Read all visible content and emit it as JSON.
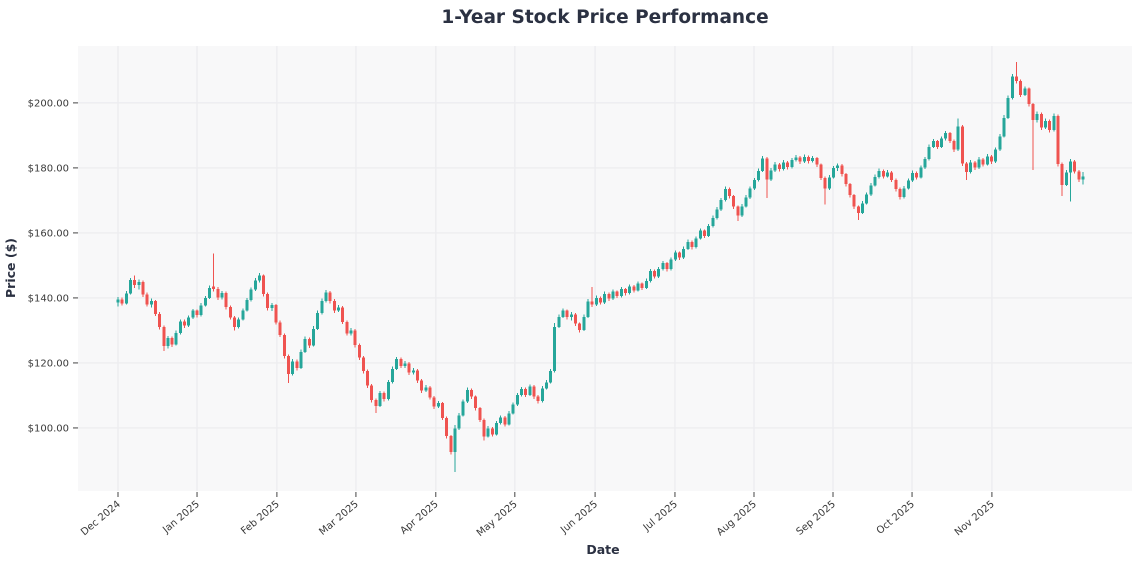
{
  "chart_data": {
    "type": "candlestick",
    "title": "1-Year Stock Price Performance",
    "xlabel": "Date",
    "ylabel": "Price ($)",
    "grid": true,
    "legend": "none",
    "ylim": [
      80.6,
      217.5
    ],
    "colors": {
      "up": "#26a69a",
      "down": "#ef5350",
      "plot_bg": "#f8f8f9",
      "grid": "#ededf0",
      "tick": "#444444",
      "tick_text": "#3a3a3a",
      "title_text": "#2b3142",
      "figure_bg": "#ffffff"
    },
    "y_ticks": [
      {
        "value": 100,
        "label": "$100.00"
      },
      {
        "value": 120,
        "label": "$120.00"
      },
      {
        "value": 140,
        "label": "$140.00"
      },
      {
        "value": 160,
        "label": "$160.00"
      },
      {
        "value": 180,
        "label": "$180.00"
      },
      {
        "value": 200,
        "label": "$200.00"
      }
    ],
    "x_ticks": [
      {
        "index": 0,
        "label": "Dec 2024"
      },
      {
        "index": 19,
        "label": "Jan 2025"
      },
      {
        "index": 38.2,
        "label": "Feb 2025"
      },
      {
        "index": 57.2,
        "label": "Mar 2025"
      },
      {
        "index": 76.4,
        "label": "Apr 2025"
      },
      {
        "index": 95.4,
        "label": "May 2025"
      },
      {
        "index": 114.7,
        "label": "Jun 2025"
      },
      {
        "index": 133.9,
        "label": "Jul 2025"
      },
      {
        "index": 152.9,
        "label": "Aug 2025"
      },
      {
        "index": 171.9,
        "label": "Sep 2025"
      },
      {
        "index": 190.9,
        "label": "Oct 2025"
      },
      {
        "index": 210.1,
        "label": "Nov 2025"
      }
    ],
    "ohlc": [
      [
        138.6,
        140.3,
        137.4,
        139.5
      ],
      [
        139.5,
        140.2,
        137.7,
        138.3
      ],
      [
        138.3,
        142.1,
        137.9,
        141.4
      ],
      [
        141.4,
        146.2,
        141.0,
        145.5
      ],
      [
        145.5,
        146.9,
        143.1,
        143.9
      ],
      [
        143.9,
        145.6,
        142.6,
        144.9
      ],
      [
        144.9,
        145.3,
        140.3,
        141.0
      ],
      [
        141.0,
        141.6,
        137.3,
        138.0
      ],
      [
        138.0,
        139.8,
        137.1,
        139.1
      ],
      [
        139.1,
        139.4,
        134.4,
        135.1
      ],
      [
        135.1,
        135.7,
        130.3,
        131.0
      ],
      [
        131.0,
        131.5,
        123.6,
        125.2
      ],
      [
        125.2,
        128.3,
        124.4,
        127.6
      ],
      [
        127.6,
        128.1,
        124.9,
        125.7
      ],
      [
        125.7,
        129.9,
        125.3,
        129.2
      ],
      [
        129.2,
        133.4,
        128.8,
        132.8
      ],
      [
        132.8,
        133.3,
        130.7,
        131.5
      ],
      [
        131.5,
        134.6,
        131.1,
        134.0
      ],
      [
        134.0,
        136.6,
        133.5,
        136.1
      ],
      [
        136.1,
        136.5,
        133.9,
        134.7
      ],
      [
        134.7,
        138.4,
        134.3,
        137.7
      ],
      [
        137.7,
        140.6,
        137.3,
        140.0
      ],
      [
        140.0,
        143.8,
        139.6,
        143.1
      ],
      [
        143.5,
        153.6,
        141.9,
        142.7
      ],
      [
        142.7,
        143.3,
        139.4,
        140.1
      ],
      [
        140.1,
        142.2,
        139.5,
        141.5
      ],
      [
        141.5,
        141.9,
        136.5,
        137.2
      ],
      [
        137.2,
        137.7,
        133.3,
        134.0
      ],
      [
        134.0,
        134.4,
        129.9,
        131.1
      ],
      [
        131.1,
        134.0,
        130.6,
        133.4
      ],
      [
        133.4,
        136.8,
        133.0,
        136.2
      ],
      [
        136.2,
        139.9,
        135.8,
        139.3
      ],
      [
        139.3,
        143.2,
        138.9,
        142.6
      ],
      [
        142.6,
        146.1,
        142.2,
        145.4
      ],
      [
        145.4,
        147.6,
        144.8,
        146.9
      ],
      [
        146.9,
        147.2,
        140.5,
        141.2
      ],
      [
        141.2,
        141.7,
        136.2,
        136.9
      ],
      [
        136.9,
        138.5,
        135.9,
        137.8
      ],
      [
        137.8,
        138.2,
        131.8,
        132.5
      ],
      [
        132.5,
        133.0,
        127.9,
        128.6
      ],
      [
        128.6,
        129.1,
        121.4,
        122.2
      ],
      [
        122.2,
        122.6,
        113.8,
        116.6
      ],
      [
        116.6,
        121.2,
        116.2,
        120.5
      ],
      [
        120.5,
        121.0,
        117.7,
        118.5
      ],
      [
        118.5,
        124.2,
        118.1,
        123.4
      ],
      [
        123.4,
        128.1,
        123.0,
        127.3
      ],
      [
        127.3,
        127.8,
        124.6,
        125.4
      ],
      [
        125.4,
        131.3,
        125.0,
        130.5
      ],
      [
        130.5,
        136.1,
        130.1,
        135.3
      ],
      [
        135.3,
        139.8,
        134.9,
        139.0
      ],
      [
        139.0,
        142.4,
        138.6,
        141.7
      ],
      [
        141.7,
        142.1,
        138.3,
        139.0
      ],
      [
        139.0,
        139.6,
        135.4,
        136.1
      ],
      [
        136.1,
        137.8,
        135.6,
        137.1
      ],
      [
        137.1,
        137.5,
        131.9,
        132.6
      ],
      [
        132.6,
        133.1,
        128.4,
        129.1
      ],
      [
        129.1,
        130.7,
        128.5,
        130.0
      ],
      [
        130.0,
        130.4,
        124.8,
        125.5
      ],
      [
        125.5,
        126.0,
        120.9,
        121.6
      ],
      [
        121.6,
        122.1,
        116.8,
        117.5
      ],
      [
        117.5,
        118.0,
        112.3,
        113.0
      ],
      [
        113.0,
        113.5,
        107.9,
        108.6
      ],
      [
        108.6,
        109.0,
        104.6,
        106.8
      ],
      [
        106.8,
        111.4,
        106.4,
        110.7
      ],
      [
        110.7,
        111.2,
        108.2,
        108.9
      ],
      [
        108.9,
        114.8,
        108.5,
        114.1
      ],
      [
        114.1,
        118.9,
        113.7,
        118.2
      ],
      [
        118.2,
        121.9,
        117.8,
        121.2
      ],
      [
        121.2,
        121.7,
        118.4,
        119.1
      ],
      [
        119.1,
        120.6,
        118.5,
        119.9
      ],
      [
        119.9,
        120.3,
        116.3,
        117.0
      ],
      [
        117.0,
        118.4,
        116.4,
        117.7
      ],
      [
        117.7,
        118.1,
        113.9,
        114.6
      ],
      [
        114.6,
        115.1,
        110.8,
        111.5
      ],
      [
        111.5,
        113.2,
        111.0,
        112.5
      ],
      [
        112.5,
        112.9,
        108.7,
        109.4
      ],
      [
        109.4,
        109.9,
        105.9,
        106.6
      ],
      [
        106.6,
        108.3,
        106.1,
        107.6
      ],
      [
        107.6,
        108.0,
        102.4,
        103.1
      ],
      [
        103.1,
        103.5,
        96.8,
        97.5
      ],
      [
        97.5,
        97.9,
        91.9,
        92.6
      ],
      [
        92.6,
        100.9,
        86.4,
        99.8
      ],
      [
        99.8,
        104.6,
        99.4,
        103.9
      ],
      [
        103.9,
        108.8,
        103.5,
        108.1
      ],
      [
        108.1,
        112.4,
        107.7,
        111.7
      ],
      [
        111.7,
        112.1,
        108.9,
        109.6
      ],
      [
        109.6,
        110.0,
        105.4,
        106.1
      ],
      [
        106.1,
        106.5,
        101.8,
        102.5
      ],
      [
        102.5,
        102.9,
        96.2,
        97.4
      ],
      [
        97.4,
        100.6,
        97.0,
        99.9
      ],
      [
        99.9,
        100.3,
        97.3,
        98.0
      ],
      [
        98.0,
        102.2,
        97.6,
        101.5
      ],
      [
        101.5,
        103.8,
        101.1,
        103.2
      ],
      [
        103.2,
        103.6,
        100.4,
        101.1
      ],
      [
        101.1,
        105.2,
        100.7,
        104.5
      ],
      [
        104.5,
        107.9,
        104.1,
        107.2
      ],
      [
        107.2,
        110.8,
        106.8,
        110.1
      ],
      [
        110.1,
        112.6,
        109.7,
        112.0
      ],
      [
        112.0,
        112.4,
        109.5,
        110.2
      ],
      [
        110.2,
        113.4,
        109.8,
        112.8
      ],
      [
        112.8,
        113.2,
        108.9,
        109.6
      ],
      [
        109.6,
        110.1,
        107.5,
        108.3
      ],
      [
        108.3,
        112.9,
        107.9,
        112.2
      ],
      [
        112.2,
        114.7,
        111.8,
        114.0
      ],
      [
        114.0,
        118.2,
        113.6,
        117.5
      ],
      [
        117.5,
        132.3,
        117.1,
        131.1
      ],
      [
        131.1,
        134.9,
        130.7,
        134.2
      ],
      [
        134.2,
        136.8,
        133.8,
        136.1
      ],
      [
        136.1,
        136.5,
        133.4,
        134.1
      ],
      [
        134.1,
        135.6,
        133.0,
        134.9
      ],
      [
        134.9,
        135.3,
        131.4,
        132.1
      ],
      [
        132.1,
        132.5,
        129.3,
        130.2
      ],
      [
        130.2,
        134.9,
        129.8,
        134.2
      ],
      [
        134.2,
        139.6,
        133.8,
        138.9
      ],
      [
        138.9,
        143.4,
        137.2,
        137.9
      ],
      [
        137.9,
        140.7,
        137.5,
        140.0
      ],
      [
        140.0,
        140.4,
        137.9,
        138.6
      ],
      [
        138.6,
        141.9,
        138.2,
        141.2
      ],
      [
        141.2,
        141.6,
        139.1,
        139.8
      ],
      [
        139.8,
        142.6,
        139.4,
        141.9
      ],
      [
        141.9,
        142.3,
        139.9,
        140.6
      ],
      [
        140.6,
        143.3,
        140.2,
        142.7
      ],
      [
        142.7,
        143.1,
        140.8,
        141.5
      ],
      [
        141.5,
        144.2,
        141.1,
        143.5
      ],
      [
        143.5,
        143.9,
        141.6,
        142.3
      ],
      [
        142.3,
        145.1,
        141.9,
        144.4
      ],
      [
        144.4,
        144.8,
        142.4,
        143.1
      ],
      [
        143.1,
        145.9,
        142.7,
        145.2
      ],
      [
        145.2,
        148.9,
        144.8,
        148.3
      ],
      [
        148.3,
        148.8,
        145.9,
        146.6
      ],
      [
        146.6,
        149.5,
        146.2,
        148.9
      ],
      [
        148.9,
        151.3,
        148.5,
        150.7
      ],
      [
        150.7,
        151.1,
        148.2,
        148.9
      ],
      [
        148.9,
        152.4,
        148.5,
        151.8
      ],
      [
        151.8,
        154.6,
        151.4,
        153.9
      ],
      [
        153.9,
        154.3,
        151.7,
        152.4
      ],
      [
        152.4,
        155.8,
        152.0,
        155.1
      ],
      [
        155.1,
        157.9,
        154.7,
        157.2
      ],
      [
        157.2,
        157.6,
        154.9,
        155.6
      ],
      [
        155.6,
        158.9,
        155.2,
        158.3
      ],
      [
        158.3,
        161.4,
        157.9,
        160.7
      ],
      [
        160.7,
        161.1,
        158.4,
        159.1
      ],
      [
        159.1,
        162.8,
        158.7,
        162.1
      ],
      [
        162.1,
        165.3,
        161.7,
        164.6
      ],
      [
        164.6,
        167.9,
        164.2,
        167.2
      ],
      [
        167.2,
        170.8,
        166.8,
        170.1
      ],
      [
        170.1,
        174.2,
        169.7,
        173.5
      ],
      [
        173.5,
        173.9,
        170.6,
        171.3
      ],
      [
        171.3,
        171.7,
        167.4,
        168.1
      ],
      [
        168.1,
        168.5,
        163.6,
        165.3
      ],
      [
        165.3,
        168.9,
        164.9,
        168.2
      ],
      [
        168.2,
        171.6,
        167.8,
        170.9
      ],
      [
        170.9,
        174.3,
        170.5,
        173.6
      ],
      [
        173.6,
        176.9,
        173.2,
        176.2
      ],
      [
        176.2,
        179.8,
        175.8,
        179.1
      ],
      [
        179.1,
        183.6,
        178.7,
        182.9
      ],
      [
        182.9,
        183.3,
        170.8,
        176.4
      ],
      [
        176.4,
        179.9,
        176.0,
        179.2
      ],
      [
        179.2,
        181.8,
        178.8,
        181.1
      ],
      [
        181.1,
        181.5,
        178.9,
        179.6
      ],
      [
        179.6,
        182.4,
        179.2,
        181.7
      ],
      [
        181.7,
        182.1,
        179.5,
        180.2
      ],
      [
        180.2,
        183.1,
        179.8,
        182.4
      ],
      [
        182.4,
        183.9,
        181.9,
        183.2
      ],
      [
        183.2,
        183.6,
        181.2,
        181.9
      ],
      [
        181.9,
        184.1,
        181.5,
        183.4
      ],
      [
        183.4,
        183.8,
        181.4,
        182.1
      ],
      [
        182.1,
        183.7,
        181.7,
        183.0
      ],
      [
        183.0,
        183.4,
        180.3,
        181.0
      ],
      [
        181.0,
        181.4,
        176.2,
        176.9
      ],
      [
        176.9,
        177.3,
        168.7,
        173.6
      ],
      [
        173.6,
        177.8,
        173.2,
        177.1
      ],
      [
        177.1,
        180.6,
        176.7,
        179.9
      ],
      [
        179.9,
        181.4,
        179.0,
        180.8
      ],
      [
        180.8,
        181.2,
        177.4,
        178.1
      ],
      [
        178.1,
        178.5,
        174.3,
        175.0
      ],
      [
        175.0,
        175.4,
        170.9,
        171.6
      ],
      [
        171.6,
        172.0,
        167.4,
        168.1
      ],
      [
        168.1,
        168.5,
        163.9,
        166.2
      ],
      [
        166.2,
        169.8,
        165.8,
        169.1
      ],
      [
        169.1,
        172.5,
        168.7,
        171.8
      ],
      [
        171.8,
        175.3,
        171.4,
        174.6
      ],
      [
        174.6,
        177.9,
        174.2,
        177.2
      ],
      [
        177.2,
        179.8,
        176.8,
        179.1
      ],
      [
        179.1,
        179.5,
        176.7,
        177.4
      ],
      [
        177.4,
        179.3,
        177.0,
        178.6
      ],
      [
        178.6,
        179.0,
        175.6,
        176.3
      ],
      [
        176.3,
        176.7,
        172.8,
        173.5
      ],
      [
        173.5,
        173.9,
        170.3,
        171.0
      ],
      [
        171.0,
        174.4,
        170.6,
        173.7
      ],
      [
        173.7,
        176.8,
        173.3,
        176.1
      ],
      [
        176.1,
        179.2,
        175.7,
        178.5
      ],
      [
        178.5,
        178.9,
        176.4,
        177.1
      ],
      [
        177.1,
        180.8,
        176.7,
        180.1
      ],
      [
        180.1,
        183.4,
        179.7,
        182.7
      ],
      [
        182.7,
        187.2,
        182.3,
        186.5
      ],
      [
        186.5,
        188.9,
        186.1,
        188.2
      ],
      [
        188.2,
        188.6,
        185.8,
        186.5
      ],
      [
        186.5,
        189.7,
        186.1,
        189.0
      ],
      [
        189.0,
        191.4,
        188.4,
        190.7
      ],
      [
        190.7,
        191.1,
        187.6,
        188.3
      ],
      [
        188.3,
        188.7,
        184.9,
        185.6
      ],
      [
        185.6,
        195.2,
        185.2,
        192.8
      ],
      [
        192.8,
        193.2,
        180.6,
        181.4
      ],
      [
        181.4,
        181.8,
        176.3,
        178.7
      ],
      [
        178.7,
        182.4,
        178.3,
        181.7
      ],
      [
        181.7,
        182.1,
        179.4,
        180.1
      ],
      [
        180.1,
        183.3,
        179.7,
        182.6
      ],
      [
        182.6,
        183.0,
        180.4,
        181.1
      ],
      [
        181.1,
        184.2,
        180.7,
        183.5
      ],
      [
        183.5,
        183.9,
        181.2,
        181.9
      ],
      [
        181.9,
        186.3,
        181.5,
        185.6
      ],
      [
        185.6,
        190.4,
        185.2,
        189.7
      ],
      [
        189.7,
        196.2,
        189.3,
        195.4
      ],
      [
        195.4,
        202.3,
        195.0,
        201.5
      ],
      [
        201.5,
        208.9,
        201.1,
        208.1
      ],
      [
        208.1,
        212.6,
        205.9,
        206.7
      ],
      [
        206.7,
        207.2,
        201.8,
        202.5
      ],
      [
        202.5,
        205.1,
        202.1,
        204.4
      ],
      [
        204.4,
        204.8,
        198.9,
        199.6
      ],
      [
        199.6,
        200.0,
        179.3,
        194.8
      ],
      [
        194.8,
        197.3,
        194.0,
        196.6
      ],
      [
        196.6,
        197.0,
        191.7,
        192.4
      ],
      [
        192.4,
        195.2,
        192.0,
        194.5
      ],
      [
        194.5,
        194.9,
        190.9,
        191.6
      ],
      [
        191.6,
        196.7,
        191.2,
        196.0
      ],
      [
        196.0,
        196.4,
        180.5,
        181.2
      ],
      [
        181.2,
        181.6,
        171.4,
        174.8
      ],
      [
        174.8,
        179.3,
        174.4,
        178.6
      ],
      [
        178.6,
        182.7,
        169.6,
        182.0
      ],
      [
        182.0,
        182.4,
        178.2,
        178.9
      ],
      [
        178.9,
        179.3,
        175.7,
        176.4
      ],
      [
        176.4,
        178.8,
        174.9,
        177.3
      ]
    ]
  }
}
